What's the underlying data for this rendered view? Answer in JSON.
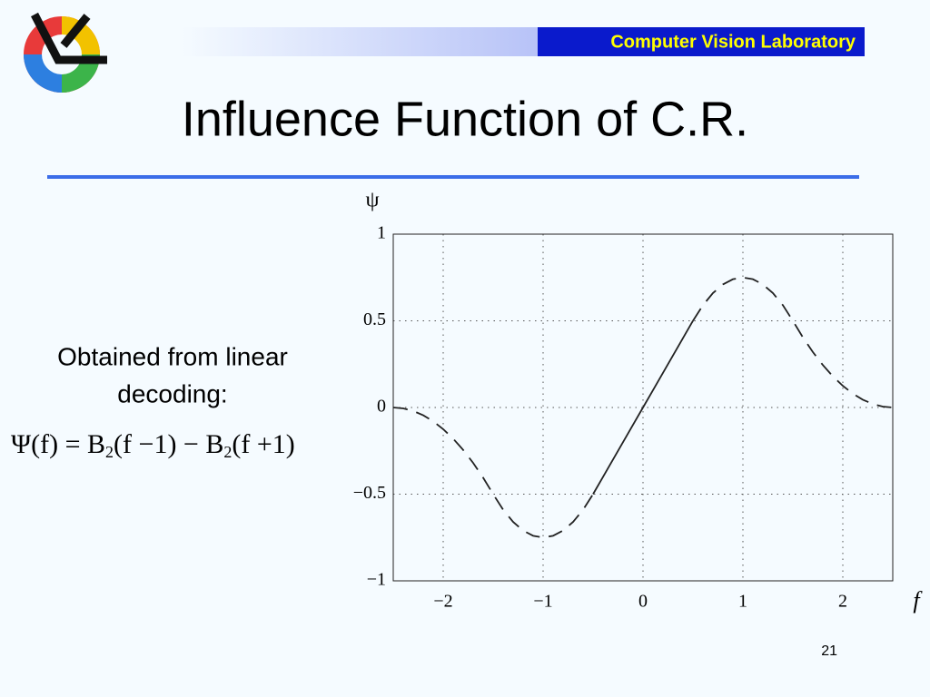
{
  "header": {
    "lab": "Computer Vision Laboratory",
    "title": "Influence Function of C.R.",
    "page": "21"
  },
  "body": {
    "text": [
      "Obtained from linear",
      "decoding:"
    ],
    "formula": [
      "Ψ(f) = B",
      "2",
      "(f −1) − B",
      "2",
      "(f +1)"
    ]
  },
  "chart_data": {
    "type": "line",
    "x_label": "f",
    "y_label": "ψ",
    "x": [
      -2.5,
      -2.4,
      -2.3,
      -2.2,
      -2.1,
      -2.0,
      -1.9,
      -1.8,
      -1.7,
      -1.6,
      -1.5,
      -1.4,
      -1.3,
      -1.2,
      -1.1,
      -1.0,
      -0.9,
      -0.8,
      -0.7,
      -0.6,
      -0.5,
      -0.4,
      -0.3,
      -0.2,
      -0.1,
      0,
      0.1,
      0.2,
      0.3,
      0.4,
      0.5,
      0.6,
      0.7,
      0.8,
      0.9,
      1.0,
      1.1,
      1.2,
      1.3,
      1.4,
      1.5,
      1.6,
      1.7,
      1.8,
      1.9,
      2.0,
      2.1,
      2.2,
      2.3,
      2.4,
      2.5
    ],
    "series": [
      {
        "color": "#222222",
        "dash": true,
        "values": [
          0,
          -0.005,
          -0.02,
          -0.045,
          -0.08,
          -0.125,
          -0.18,
          -0.245,
          -0.32,
          -0.405,
          -0.5,
          -0.59,
          -0.66,
          -0.71,
          -0.74,
          -0.75,
          -0.74,
          -0.71,
          -0.66,
          -0.59,
          -0.5,
          null,
          null,
          null,
          null,
          null,
          null,
          null,
          null,
          null,
          0.5,
          0.59,
          0.66,
          0.71,
          0.74,
          0.75,
          0.74,
          0.71,
          0.66,
          0.59,
          0.5,
          0.405,
          0.32,
          0.245,
          0.18,
          0.125,
          0.08,
          0.045,
          0.02,
          0.005,
          0
        ]
      },
      {
        "color": "#222222",
        "dash": false,
        "values": [
          null,
          null,
          null,
          null,
          null,
          null,
          null,
          null,
          null,
          null,
          null,
          null,
          null,
          null,
          null,
          null,
          null,
          null,
          null,
          null,
          -0.5,
          -0.4,
          -0.3,
          -0.2,
          -0.1,
          0,
          0.1,
          0.2,
          0.3,
          0.4,
          0.5,
          null,
          null,
          null,
          null,
          null,
          null,
          null,
          null,
          null,
          null,
          null,
          null,
          null,
          null,
          null,
          null,
          null,
          null,
          null,
          null
        ]
      }
    ],
    "xlim": [
      -2.5,
      2.5
    ],
    "xticks": [
      {
        "value": -2,
        "label": "−2"
      },
      {
        "value": -1,
        "label": "−1"
      },
      0,
      1,
      2
    ],
    "ylim": [
      -1,
      1
    ],
    "yticks": [
      {
        "value": -1,
        "label": "−1"
      },
      {
        "value": -0.5,
        "label": "−0.5"
      },
      0,
      0.5,
      1
    ],
    "grid": true
  }
}
